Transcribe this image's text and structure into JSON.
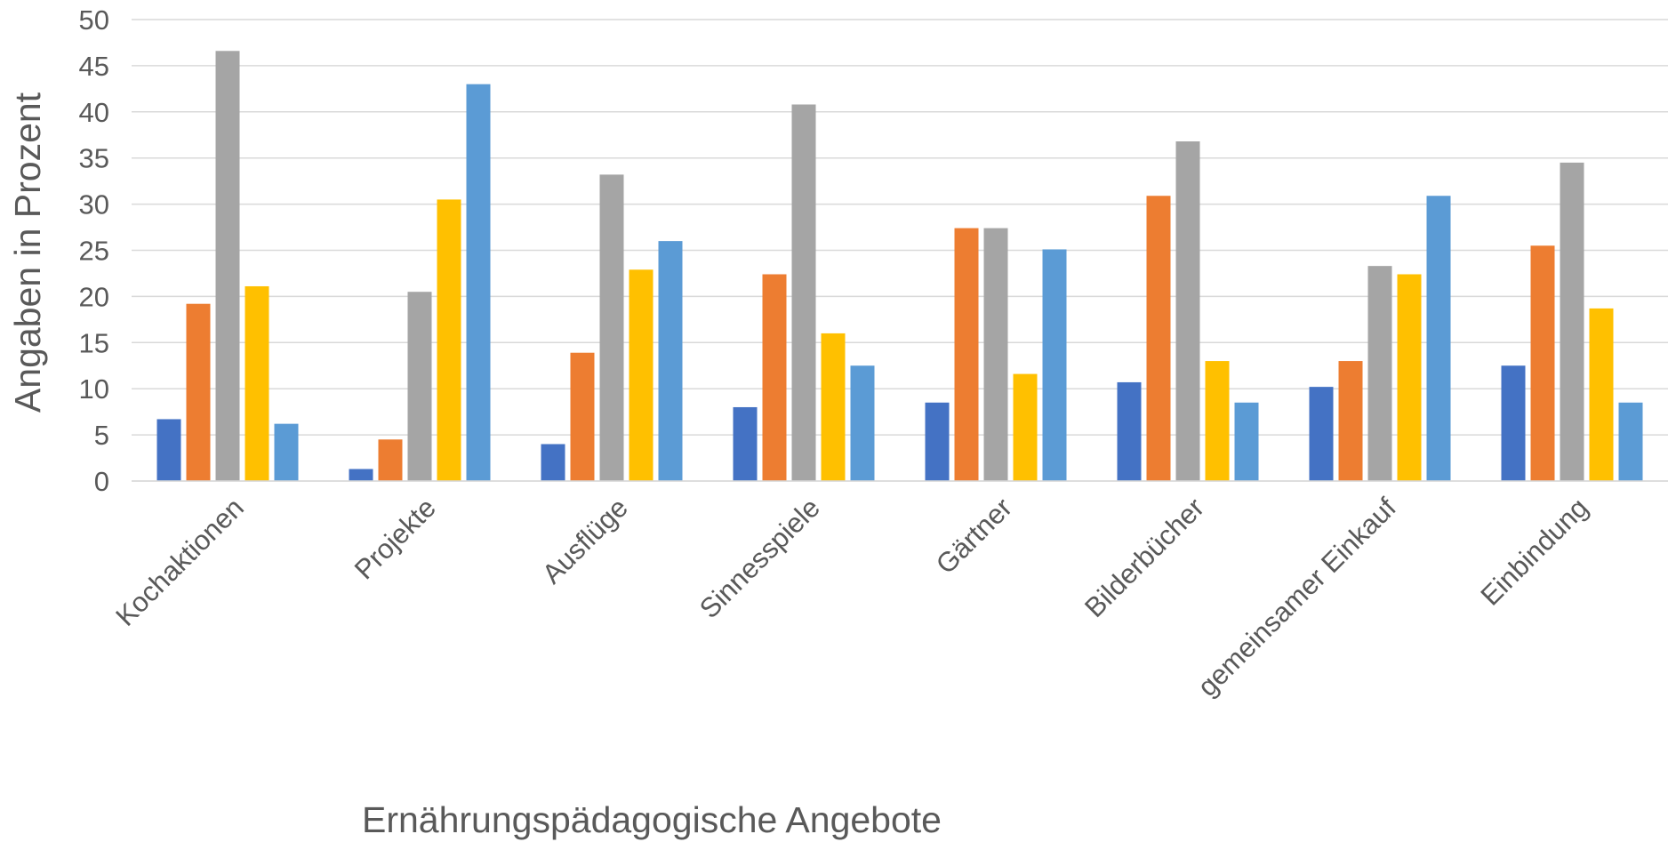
{
  "chart_data": {
    "type": "bar",
    "title": "",
    "xlabel": "Ernährungspädagogische Angebote",
    "ylabel": "Angaben in Prozent",
    "ylim": [
      0,
      50
    ],
    "yticks": [
      0,
      5,
      10,
      15,
      20,
      25,
      30,
      35,
      40,
      45,
      50
    ],
    "grid": true,
    "legend": "none",
    "categories": [
      "Kochaktionen",
      "Projekte",
      "Ausflüge",
      "Sinnesspiele",
      "Gärtner",
      "Bilderbücher",
      "gemeinsamer Einkauf",
      "Einbindung"
    ],
    "series": [
      {
        "color": "#4472C4",
        "values": [
          6.7,
          1.3,
          4.0,
          8.0,
          8.5,
          10.7,
          10.2,
          12.5
        ]
      },
      {
        "color": "#ED7D31",
        "values": [
          19.2,
          4.5,
          13.9,
          22.4,
          27.4,
          30.9,
          13.0,
          25.5
        ]
      },
      {
        "color": "#A5A5A5",
        "values": [
          46.6,
          20.5,
          33.2,
          40.8,
          27.4,
          36.8,
          23.3,
          34.5
        ]
      },
      {
        "color": "#FFC000",
        "values": [
          21.1,
          30.5,
          22.9,
          16.0,
          11.6,
          13.0,
          22.4,
          18.7
        ]
      },
      {
        "color": "#5B9BD5",
        "values": [
          6.2,
          43.0,
          26.0,
          12.5,
          25.1,
          8.5,
          30.9,
          8.5
        ]
      }
    ]
  }
}
